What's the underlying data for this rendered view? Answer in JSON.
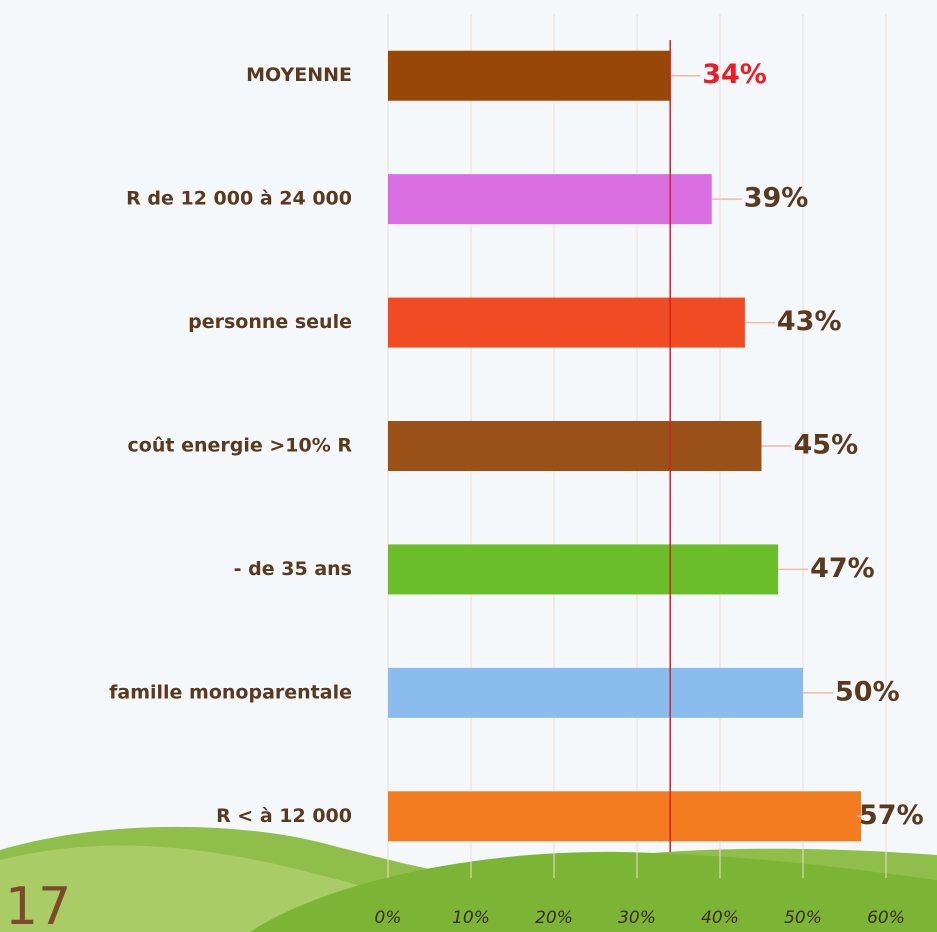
{
  "chart_data": {
    "type": "hbar",
    "categories": [
      "MOYENNE",
      "R de 12 000 à 24 000",
      "personne seule",
      "coût energie >10% R",
      "- de 35 ans",
      "famille monoparentale",
      "R < à 12 000"
    ],
    "values": [
      34,
      39,
      43,
      45,
      47,
      50,
      57
    ],
    "value_labels": [
      "34%",
      "39%",
      "43%",
      "45%",
      "47%",
      "50%",
      "57%"
    ],
    "colors": [
      "#974706",
      "#d96fe0",
      "#f04b22",
      "#9a5118",
      "#6bbe2a",
      "#8bbcee",
      "#f47c20"
    ],
    "label_colors": [
      "#ee1c25",
      "#5a3a1e",
      "#5a3a1e",
      "#5a3a1e",
      "#5a3a1e",
      "#5a3a1e",
      "#5a3a1e"
    ],
    "reference_color": "#d62020",
    "xlim": [
      0,
      60
    ],
    "xticks": [
      {
        "value": 0,
        "label": "0%"
      },
      {
        "value": 10,
        "label": "10%"
      },
      {
        "value": 20,
        "label": "20%"
      },
      {
        "value": 30,
        "label": "30%"
      },
      {
        "value": 40,
        "label": "40%"
      },
      {
        "value": 50,
        "label": "50%"
      },
      {
        "value": 60,
        "label": "60%"
      }
    ],
    "grid": true
  },
  "page_number": "17"
}
